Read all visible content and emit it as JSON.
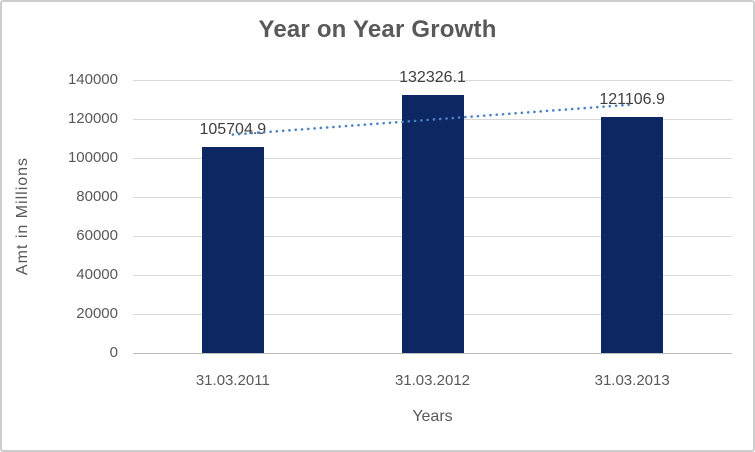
{
  "chart_data": {
    "type": "bar",
    "title": "Year on Year Growth",
    "categories": [
      "31.03.2011",
      "31.03.2012",
      "31.03.2013"
    ],
    "values": [
      105704.9,
      132326.1,
      121106.9
    ],
    "data_labels": [
      "105704.9",
      "132326.1",
      "121106.9"
    ],
    "xlabel": "Years",
    "ylabel": "Amt in Millions",
    "ylim": [
      0,
      140000
    ],
    "ytick_step": 20000,
    "ytick_labels": [
      "0",
      "20000",
      "40000",
      "60000",
      "80000",
      "100000",
      "120000",
      "140000"
    ],
    "grid": "horizontal",
    "legend": "none",
    "trendline": {
      "type": "linear",
      "style": "dotted",
      "endpoint_values": [
        112011.6,
        127413.6
      ]
    },
    "colors": {
      "bar": "#0d2763",
      "trendline": "#4a82c6",
      "gridline": "#d9d9d9",
      "axis_line": "#bfbfbf",
      "text": "#595959",
      "data_label": "#404040",
      "frame_border": "#cdcdcd",
      "background": "#ffffff"
    }
  }
}
